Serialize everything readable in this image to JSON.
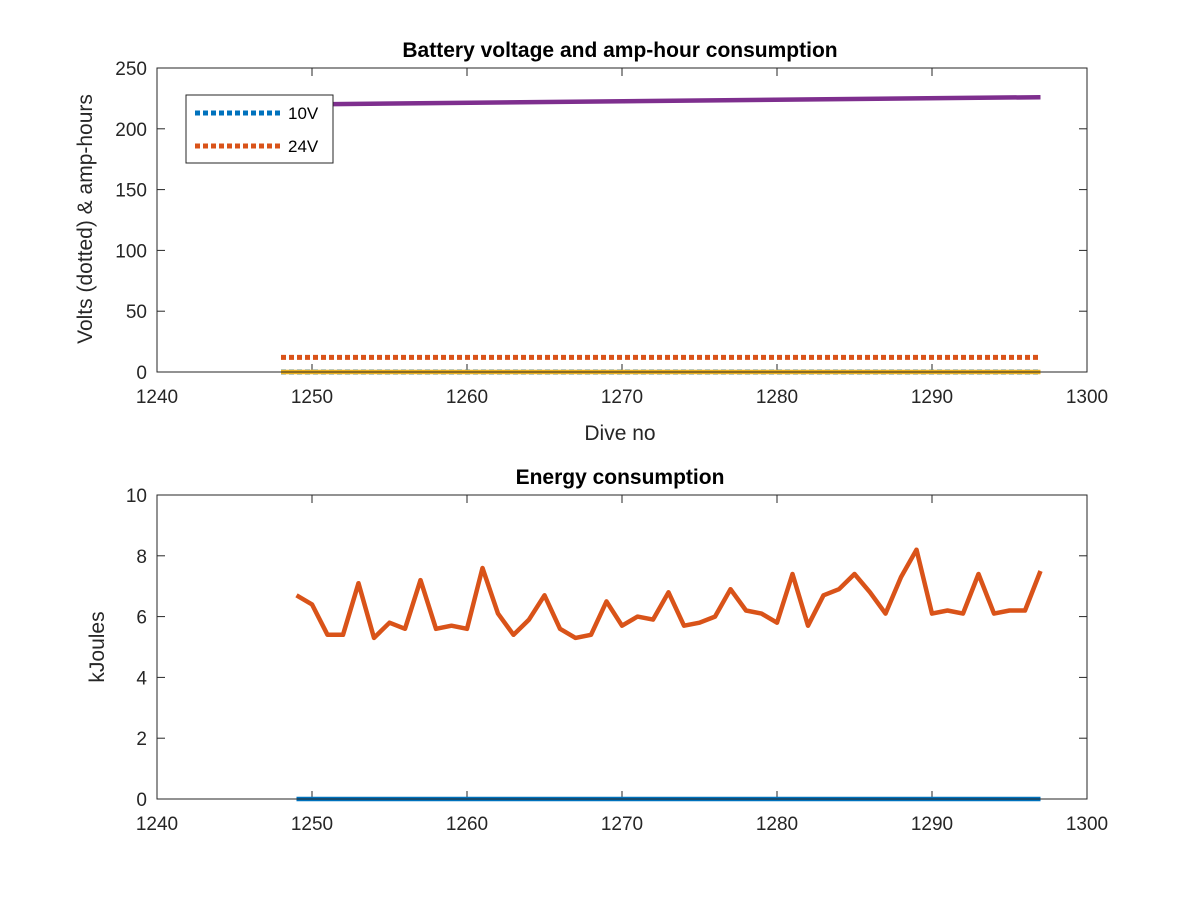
{
  "chart_data": [
    {
      "type": "line",
      "title": "Battery voltage and amp-hour consumption",
      "xlabel": "Dive no",
      "ylabel": "Volts (dotted) & amp-hours",
      "xlim": [
        1240,
        1300
      ],
      "ylim": [
        0,
        250
      ],
      "xticks": [
        "1240",
        "1250",
        "1260",
        "1270",
        "1280",
        "1290",
        "1300"
      ],
      "yticks": [
        "0",
        "50",
        "100",
        "150",
        "200",
        "250"
      ],
      "grid": false,
      "legend_position": "top-left",
      "series": [
        {
          "name": "10V",
          "style": "dotted",
          "color": "#0072BD",
          "x": [
            1248,
            1297
          ],
          "y": [
            0,
            0
          ]
        },
        {
          "name": "24V",
          "style": "dotted",
          "color": "#D95319",
          "x": [
            1248,
            1297
          ],
          "y": [
            12,
            12
          ]
        },
        {
          "style": "solid",
          "color": "#EDB120",
          "x": [
            1248,
            1297
          ],
          "y": [
            0,
            0
          ]
        },
        {
          "style": "solid",
          "color": "#7E2F8E",
          "x": [
            1249,
            1297
          ],
          "y": [
            220,
            226
          ]
        }
      ]
    },
    {
      "type": "line",
      "title": "Energy consumption",
      "xlabel": "",
      "ylabel": "kJoules",
      "xlim": [
        1240,
        1300
      ],
      "ylim": [
        0,
        10
      ],
      "xticks": [
        "1240",
        "1250",
        "1260",
        "1270",
        "1280",
        "1290",
        "1300"
      ],
      "yticks": [
        "0",
        "2",
        "4",
        "6",
        "8",
        "10"
      ],
      "grid": false,
      "series": [
        {
          "style": "solid",
          "color": "#0072BD",
          "x": [
            1249,
            1297
          ],
          "y": [
            0,
            0
          ]
        },
        {
          "style": "solid",
          "color": "#D95319",
          "x": [
            1249,
            1250,
            1251,
            1252,
            1253,
            1254,
            1255,
            1256,
            1257,
            1258,
            1259,
            1260,
            1261,
            1262,
            1263,
            1264,
            1265,
            1266,
            1267,
            1268,
            1269,
            1270,
            1271,
            1272,
            1273,
            1274,
            1275,
            1276,
            1277,
            1278,
            1279,
            1280,
            1281,
            1282,
            1283,
            1284,
            1285,
            1286,
            1287,
            1288,
            1289,
            1290,
            1291,
            1292,
            1293,
            1294,
            1295,
            1296,
            1297
          ],
          "y": [
            6.7,
            6.4,
            5.4,
            5.4,
            7.1,
            5.3,
            5.8,
            5.6,
            7.2,
            5.6,
            5.7,
            5.6,
            7.6,
            6.1,
            5.4,
            5.9,
            6.7,
            5.6,
            5.3,
            5.4,
            6.5,
            5.7,
            6.0,
            5.9,
            6.8,
            5.7,
            5.8,
            6.0,
            6.9,
            6.2,
            6.1,
            5.8,
            7.4,
            5.7,
            6.7,
            6.9,
            7.4,
            6.8,
            6.1,
            7.3,
            8.2,
            6.1,
            6.2,
            6.1,
            7.4,
            6.1,
            6.2,
            6.2,
            7.5
          ]
        }
      ]
    }
  ]
}
